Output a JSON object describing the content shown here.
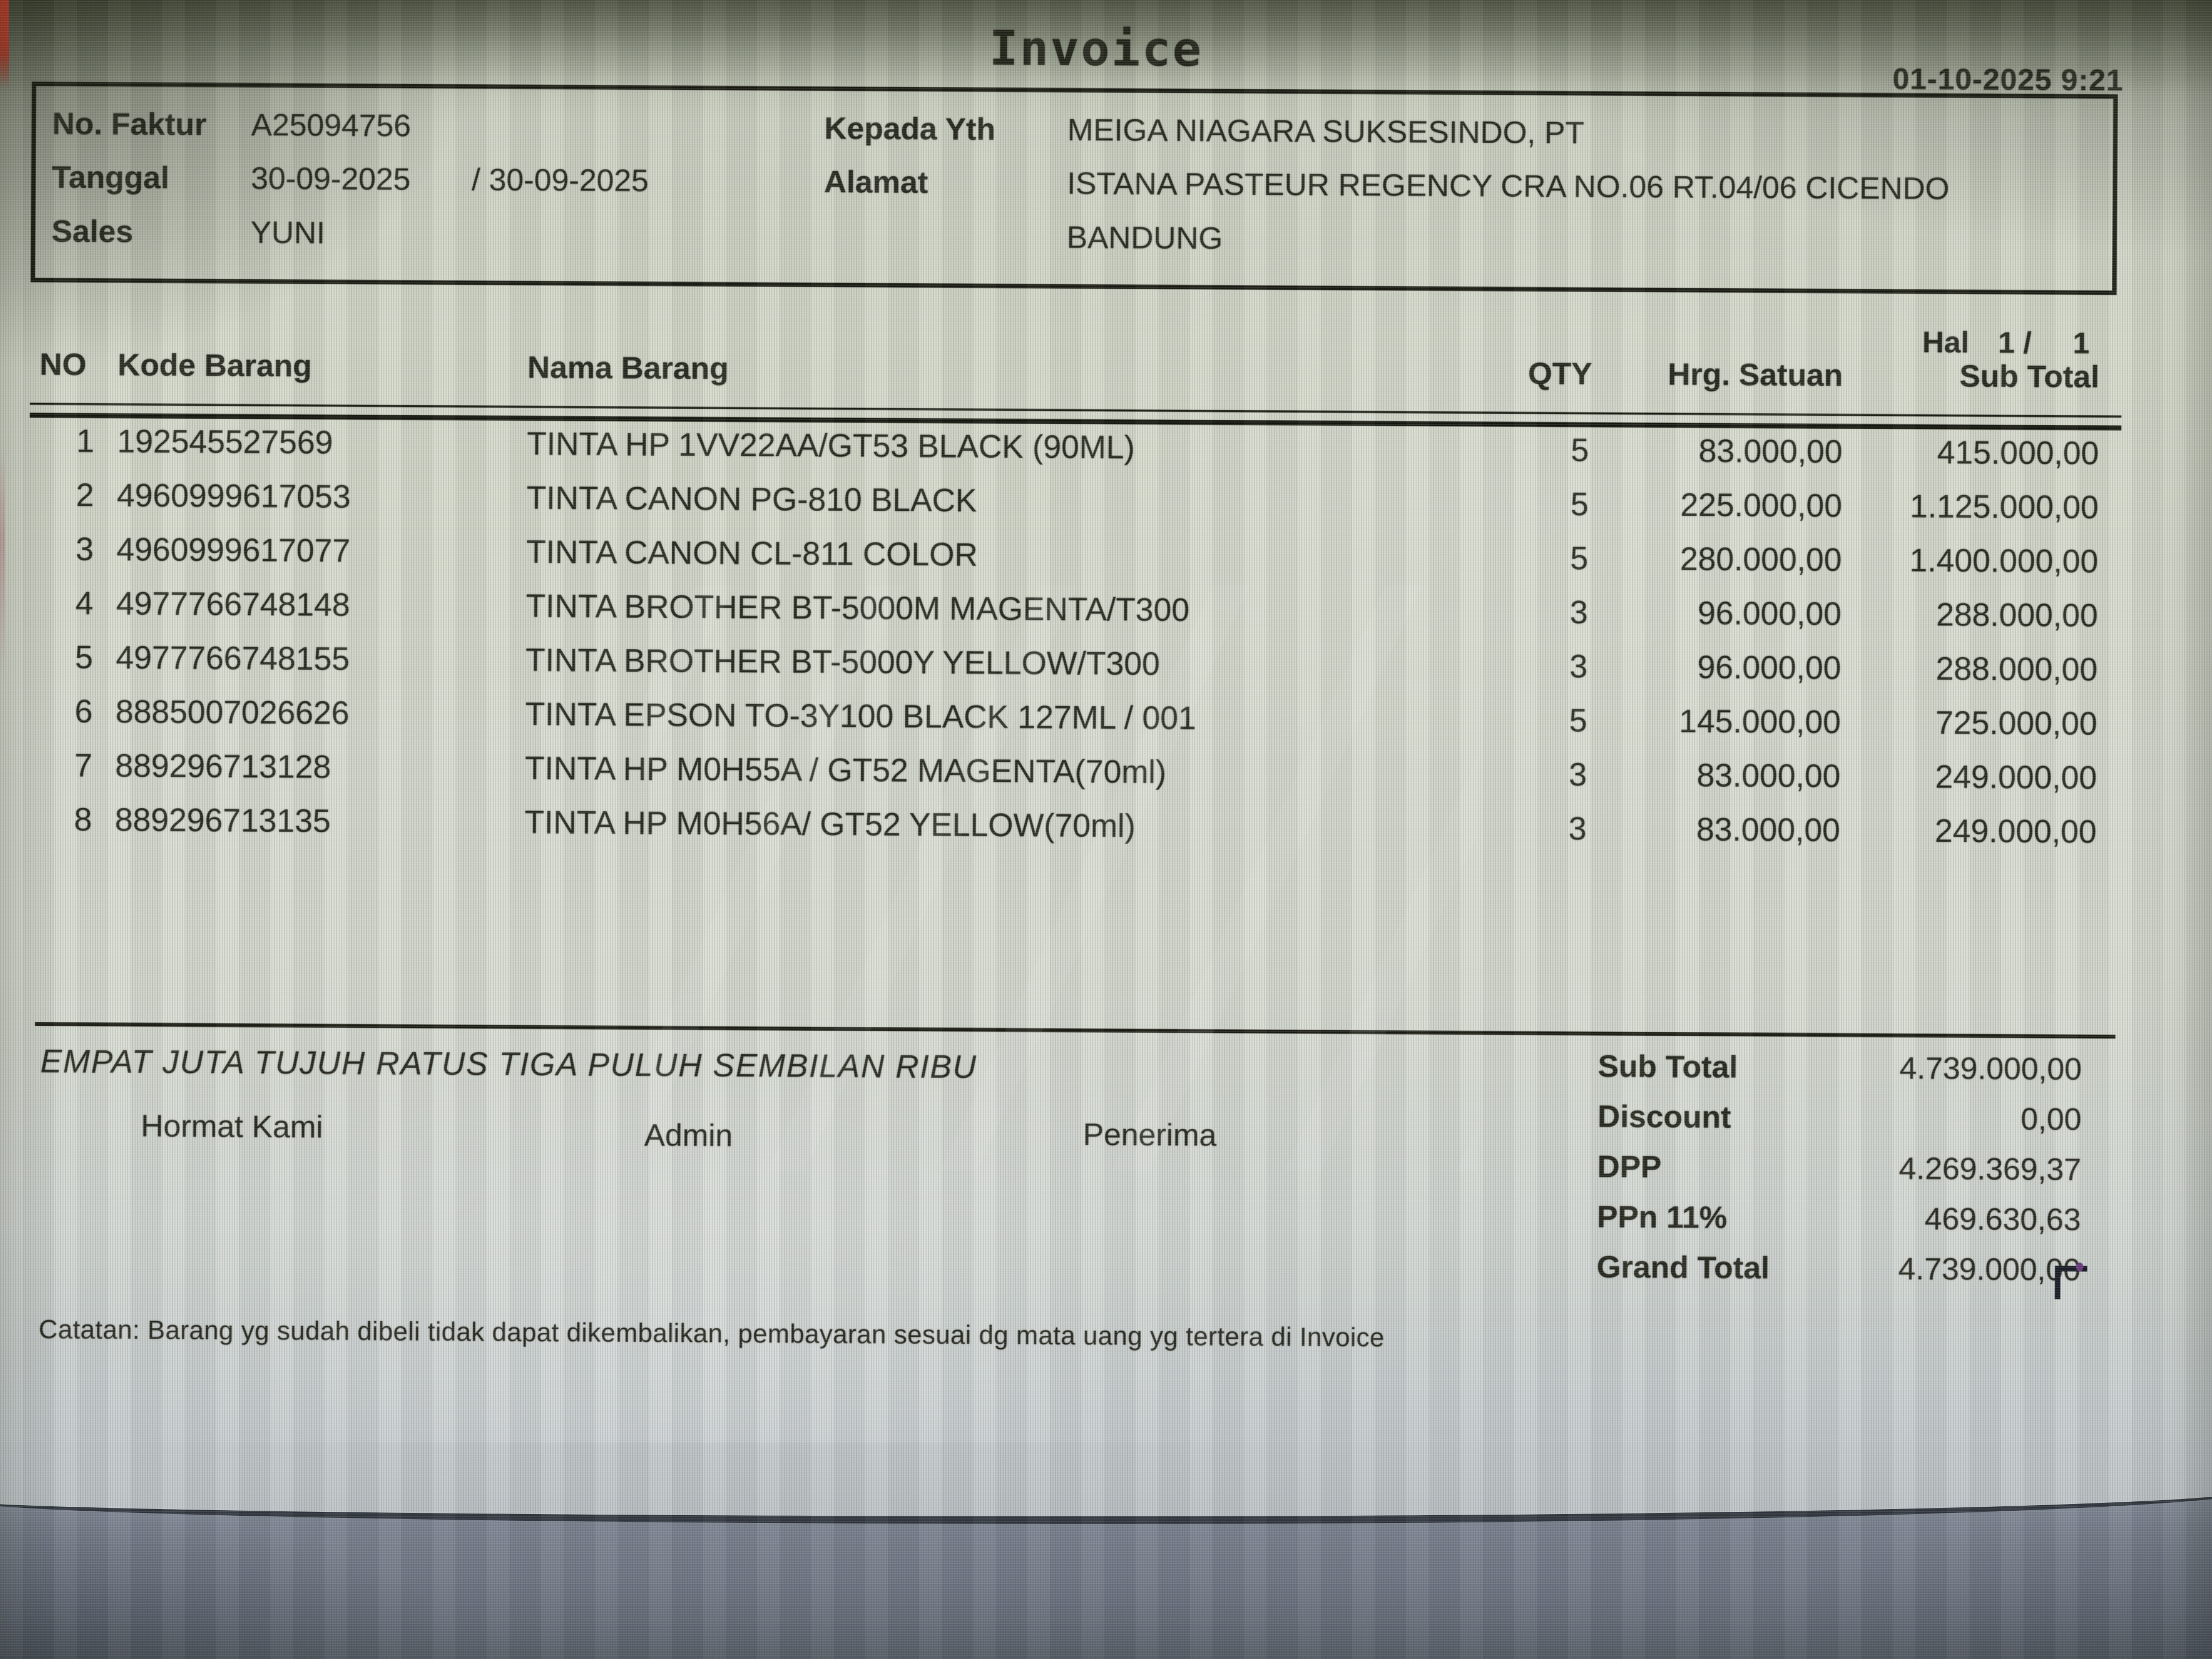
{
  "window": {
    "title": "Invoice",
    "printed_datetime": "01-10-2025 9:21"
  },
  "invoice_header": {
    "no_faktur_label": "No. Faktur",
    "no_faktur": "A25094756",
    "tanggal_label": "Tanggal",
    "tanggal": "30-09-2025",
    "tanggal_due": "/ 30-09-2025",
    "sales_label": "Sales",
    "sales": "YUNI",
    "kepada_label": "Kepada Yth",
    "kepada": "MEIGA NIAGARA SUKSESINDO, PT",
    "alamat_label": "Alamat",
    "alamat_line1": "ISTANA PASTEUR REGENCY CRA NO.06 RT.04/06 CICENDO",
    "alamat_line2": "BANDUNG"
  },
  "page_indicator": {
    "label": "Hal",
    "current": "1 /",
    "total": "1"
  },
  "items_table": {
    "columns": {
      "no": "NO",
      "kode": "Kode Barang",
      "nama": "Nama Barang",
      "qty": "QTY",
      "hrg_satuan": "Hrg. Satuan",
      "sub_total": "Sub Total"
    },
    "rows": [
      {
        "no": "1",
        "kode": "192545527569",
        "nama": "TINTA HP 1VV22AA/GT53 BLACK (90ML)",
        "qty": "5",
        "hrg_satuan": "83.000,00",
        "sub_total": "415.000,00"
      },
      {
        "no": "2",
        "kode": "4960999617053",
        "nama": "TINTA CANON PG-810 BLACK",
        "qty": "5",
        "hrg_satuan": "225.000,00",
        "sub_total": "1.125.000,00"
      },
      {
        "no": "3",
        "kode": "4960999617077",
        "nama": "TINTA CANON CL-811 COLOR",
        "qty": "5",
        "hrg_satuan": "280.000,00",
        "sub_total": "1.400.000,00"
      },
      {
        "no": "4",
        "kode": "4977766748148",
        "nama": "TINTA BROTHER BT-5000M MAGENTA/T300",
        "qty": "3",
        "hrg_satuan": "96.000,00",
        "sub_total": "288.000,00"
      },
      {
        "no": "5",
        "kode": "4977766748155",
        "nama": "TINTA BROTHER BT-5000Y YELLOW/T300",
        "qty": "3",
        "hrg_satuan": "96.000,00",
        "sub_total": "288.000,00"
      },
      {
        "no": "6",
        "kode": "8885007026626",
        "nama": "TINTA EPSON TO-3Y100 BLACK 127ML / 001",
        "qty": "5",
        "hrg_satuan": "145.000,00",
        "sub_total": "725.000,00"
      },
      {
        "no": "7",
        "kode": "889296713128",
        "nama": "TINTA HP M0H55A / GT52 MAGENTA(70ml)",
        "qty": "3",
        "hrg_satuan": "83.000,00",
        "sub_total": "249.000,00"
      },
      {
        "no": "8",
        "kode": "889296713135",
        "nama": "TINTA HP M0H56A/ GT52 YELLOW(70ml)",
        "qty": "3",
        "hrg_satuan": "83.000,00",
        "sub_total": "249.000,00"
      }
    ]
  },
  "amount_in_words": "EMPAT JUTA TUJUH RATUS TIGA PULUH SEMBILAN RIBU",
  "signatures": {
    "left": "Hormat Kami",
    "middle": "Admin",
    "right": "Penerima"
  },
  "totals": {
    "rows": [
      {
        "label": "Sub Total",
        "value": "4.739.000,00"
      },
      {
        "label": "Discount",
        "value": "0,00"
      },
      {
        "label": "DPP",
        "value": "4.269.369,37"
      },
      {
        "label": "PPn 11%",
        "value": "469.630,63"
      },
      {
        "label": "Grand Total",
        "value": "4.739.000,00"
      }
    ]
  },
  "note": "Catatan: Barang yg sudah dibeli tidak dapat dikembalikan, pembayaran sesuai dg mata uang yg tertera di Invoice"
}
